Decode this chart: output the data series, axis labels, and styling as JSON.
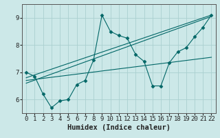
{
  "xlabel": "Humidex (Indice chaleur)",
  "bg_color": "#cce8e8",
  "line_color": "#006666",
  "grid_color": "#aad0d0",
  "xlim": [
    -0.5,
    22.5
  ],
  "ylim": [
    5.5,
    9.5
  ],
  "yticks": [
    6,
    7,
    8,
    9
  ],
  "xticks": [
    0,
    1,
    2,
    3,
    4,
    5,
    6,
    7,
    8,
    9,
    10,
    11,
    12,
    13,
    14,
    15,
    16,
    17,
    18,
    19,
    20,
    21,
    22
  ],
  "lines": [
    {
      "x": [
        0,
        1,
        2,
        3,
        4,
        5,
        6,
        7,
        8,
        9,
        10,
        11,
        12,
        13,
        14,
        15,
        16,
        17,
        18,
        19,
        20,
        21,
        22
      ],
      "y": [
        7.0,
        6.85,
        6.2,
        5.7,
        5.95,
        6.0,
        6.55,
        6.7,
        7.45,
        9.1,
        8.5,
        8.35,
        8.25,
        7.65,
        7.4,
        6.5,
        6.5,
        7.35,
        7.75,
        7.9,
        8.3,
        8.65,
        9.1
      ],
      "has_markers": true
    },
    {
      "x": [
        0,
        22
      ],
      "y": [
        6.6,
        9.05
      ],
      "has_markers": false
    },
    {
      "x": [
        0,
        22
      ],
      "y": [
        6.7,
        7.55
      ],
      "has_markers": false
    },
    {
      "x": [
        0,
        22
      ],
      "y": [
        6.8,
        9.1
      ],
      "has_markers": false
    }
  ],
  "tick_fontsize": 6.5,
  "label_fontsize": 7.5,
  "label_fontweight": "bold"
}
